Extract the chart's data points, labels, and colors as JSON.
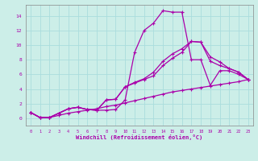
{
  "background_color": "#cceee8",
  "grid_color": "#aadddd",
  "line_color": "#aa00aa",
  "xlabel": "Windchill (Refroidissement éolien,°C)",
  "xlim": [
    -0.5,
    23.5
  ],
  "ylim": [
    -1.0,
    15.5
  ],
  "yticks": [
    0,
    2,
    4,
    6,
    8,
    10,
    12,
    14
  ],
  "xticks": [
    0,
    1,
    2,
    3,
    4,
    5,
    6,
    7,
    8,
    9,
    10,
    11,
    12,
    13,
    14,
    15,
    16,
    17,
    18,
    19,
    20,
    21,
    22,
    23
  ],
  "series": [
    {
      "x": [
        0,
        1,
        2,
        3,
        4,
        5,
        6,
        7,
        8,
        9,
        10,
        11,
        12,
        13,
        14,
        15,
        16,
        17,
        18,
        19,
        20,
        21,
        22,
        23
      ],
      "y": [
        0.8,
        0.1,
        0.1,
        0.7,
        1.3,
        1.5,
        1.2,
        1.1,
        1.1,
        1.2,
        2.5,
        9.0,
        12.0,
        13.0,
        14.7,
        14.5,
        14.5,
        8.0,
        8.0,
        4.5,
        6.5,
        6.5,
        6.0,
        5.3
      ]
    },
    {
      "x": [
        0,
        1,
        2,
        3,
        4,
        5,
        6,
        7,
        8,
        9,
        10,
        11,
        12,
        13,
        14,
        15,
        16,
        17,
        18,
        19,
        20,
        21,
        22,
        23
      ],
      "y": [
        0.8,
        0.1,
        0.1,
        0.7,
        1.3,
        1.5,
        1.2,
        1.1,
        2.5,
        2.6,
        4.3,
        4.8,
        5.3,
        5.8,
        7.2,
        8.2,
        9.0,
        10.5,
        10.4,
        7.8,
        7.2,
        6.8,
        6.3,
        5.3
      ]
    },
    {
      "x": [
        0,
        1,
        2,
        3,
        4,
        5,
        6,
        7,
        8,
        9,
        10,
        11,
        12,
        13,
        14,
        15,
        16,
        17,
        18,
        19,
        20,
        21,
        22,
        23
      ],
      "y": [
        0.8,
        0.1,
        0.1,
        0.7,
        1.3,
        1.5,
        1.2,
        1.1,
        2.5,
        2.6,
        4.3,
        4.9,
        5.4,
        6.3,
        7.8,
        8.8,
        9.5,
        10.5,
        10.4,
        8.4,
        7.7,
        6.8,
        6.3,
        5.3
      ]
    },
    {
      "x": [
        0,
        1,
        2,
        3,
        4,
        5,
        6,
        7,
        8,
        9,
        10,
        11,
        12,
        13,
        14,
        15,
        16,
        17,
        18,
        19,
        20,
        21,
        22,
        23
      ],
      "y": [
        0.8,
        0.1,
        0.1,
        0.4,
        0.7,
        0.9,
        1.1,
        1.3,
        1.6,
        1.8,
        2.1,
        2.4,
        2.7,
        3.0,
        3.3,
        3.6,
        3.8,
        4.0,
        4.2,
        4.4,
        4.6,
        4.8,
        5.0,
        5.3
      ]
    }
  ]
}
